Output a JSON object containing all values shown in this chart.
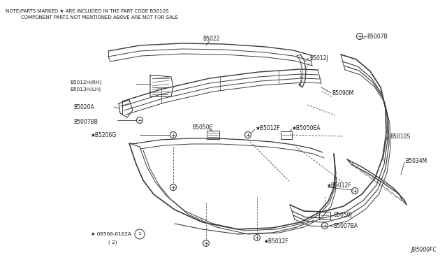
{
  "background_color": "#ffffff",
  "note_line1": "NOTE)PARTS MARKED ★ ARE INCLUDED IN THE PART CODE B5010S",
  "note_line2": "COMPONENT PARTS NOT MENTIONED ABOVE ARE NOT FOR SALE",
  "diagram_code": "JB5000FC",
  "text_color": "#1a1a1a",
  "line_color": "#3a3a3a"
}
